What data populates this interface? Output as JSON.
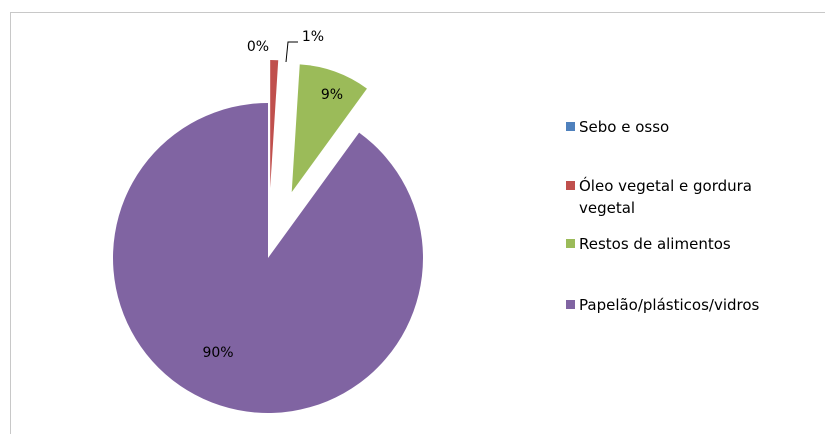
{
  "chart_data": {
    "type": "pie",
    "categories": [
      "Sebo e osso",
      "Óleo vegetal e gordura vegetal",
      "Restos de alimentos",
      "Papelão/plásticos/vidros"
    ],
    "values": [
      0,
      1,
      9,
      90
    ],
    "value_labels": [
      "0%",
      "1%",
      "9%",
      "90%"
    ],
    "colors": [
      "#4f81bd",
      "#c0504d",
      "#9bbb59",
      "#8064a2"
    ],
    "legend": "right"
  }
}
